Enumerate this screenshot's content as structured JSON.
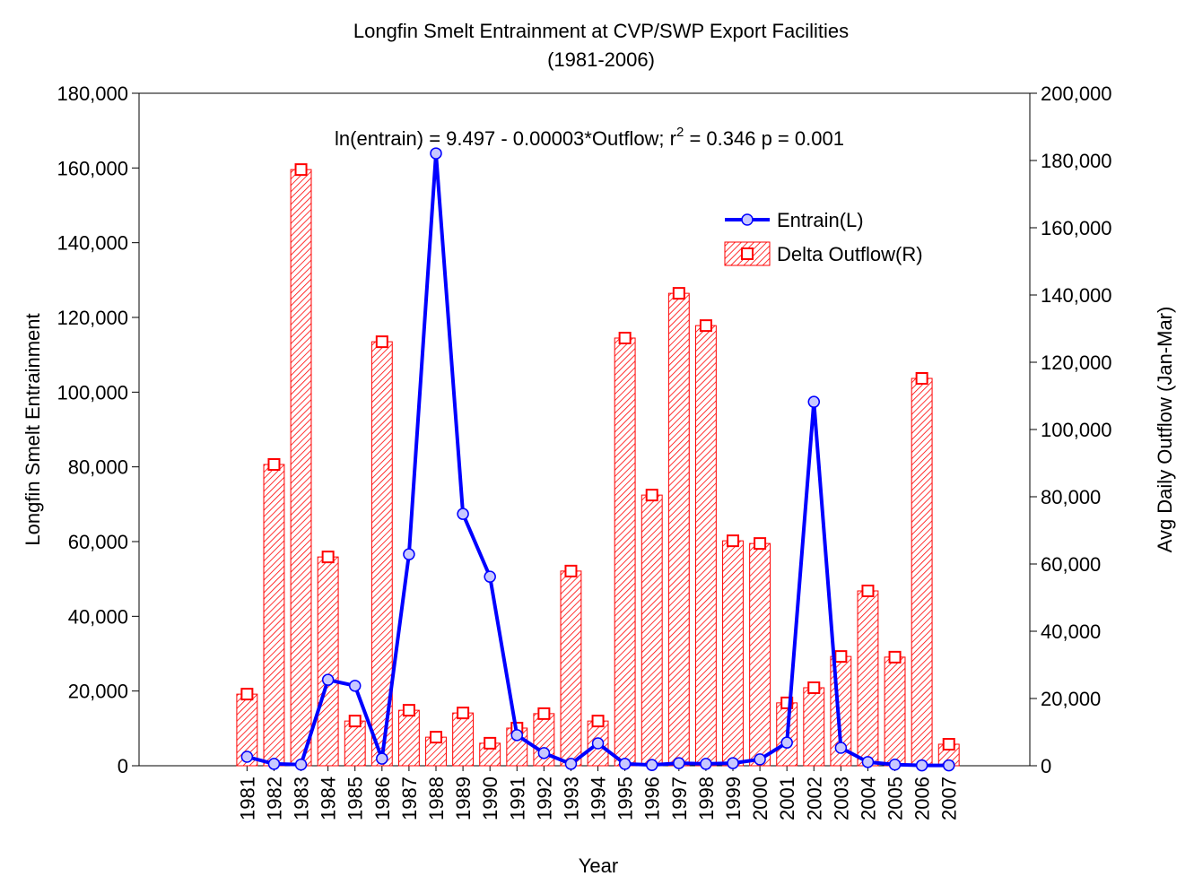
{
  "chart_data": {
    "type": "combo",
    "title": "Longfin Smelt Entrainment at CVP/SWP Export Facilities",
    "subtitle": "(1981-2006)",
    "annotation": {
      "before": "ln(entrain) = 9.497 - 0.00003*Outflow; r",
      "sup": "2",
      "after": " = 0.346  p = 0.001"
    },
    "xlabel": "Year",
    "ylabel": "Longfin Smelt Entrainment",
    "y2label": "Avg Daily Outflow (Jan-Mar)",
    "x": [
      1981,
      1982,
      1983,
      1984,
      1985,
      1986,
      1987,
      1988,
      1989,
      1990,
      1991,
      1992,
      1993,
      1994,
      1995,
      1996,
      1997,
      1998,
      1999,
      2000,
      2001,
      2002,
      2003,
      2004,
      2005,
      2006,
      2007
    ],
    "xlim": [
      1977,
      2010
    ],
    "xticks": [
      1981,
      1982,
      1983,
      1984,
      1985,
      1986,
      1987,
      1988,
      1989,
      1990,
      1991,
      1992,
      1993,
      1994,
      1995,
      1996,
      1997,
      1998,
      1999,
      2000,
      2001,
      2002,
      2003,
      2004,
      2005,
      2006,
      2007
    ],
    "ylim": [
      0,
      180000
    ],
    "yticks": [
      0,
      {
        "value": 20000,
        "label": "20,000"
      },
      {
        "value": 40000,
        "label": "40,000"
      },
      {
        "value": 60000,
        "label": "60,000"
      },
      {
        "value": 80000,
        "label": "80,000"
      },
      {
        "value": 100000,
        "label": "100,000"
      },
      {
        "value": 120000,
        "label": "120,000"
      },
      {
        "value": 140000,
        "label": "140,000"
      },
      {
        "value": 160000,
        "label": "160,000"
      },
      {
        "value": 180000,
        "label": "180,000"
      }
    ],
    "y2lim": [
      0,
      200000
    ],
    "y2ticks": [
      0,
      {
        "value": 20000,
        "label": "20,000"
      },
      {
        "value": 40000,
        "label": "40,000"
      },
      {
        "value": 60000,
        "label": "60,000"
      },
      {
        "value": 80000,
        "label": "80,000"
      },
      {
        "value": 100000,
        "label": "100,000"
      },
      {
        "value": 120000,
        "label": "120,000"
      },
      {
        "value": 140000,
        "label": "140,000"
      },
      {
        "value": 160000,
        "label": "160,000"
      },
      {
        "value": 180000,
        "label": "180,000"
      },
      {
        "value": 200000,
        "label": "200,000"
      }
    ],
    "legend": "upper right",
    "series": [
      {
        "name": "Entrain(L)",
        "type": "line",
        "axis": "y",
        "color": "#0000ff",
        "values": [
          2400,
          500,
          300,
          23000,
          21400,
          1900,
          56600,
          163900,
          67400,
          50600,
          8200,
          3400,
          500,
          6000,
          500,
          200,
          700,
          500,
          700,
          1700,
          6200,
          97400,
          4800,
          1000,
          300,
          100,
          100
        ]
      },
      {
        "name": "Delta Outflow(R)",
        "type": "bar",
        "axis": "y2",
        "color": "#ff0000",
        "values": [
          21300,
          89600,
          177300,
          62100,
          13300,
          126100,
          16500,
          8500,
          15700,
          6700,
          11200,
          15500,
          57900,
          13300,
          127200,
          80500,
          140500,
          130900,
          66900,
          66100,
          18700,
          23200,
          32500,
          52000,
          32300,
          115200,
          6400
        ]
      }
    ]
  }
}
